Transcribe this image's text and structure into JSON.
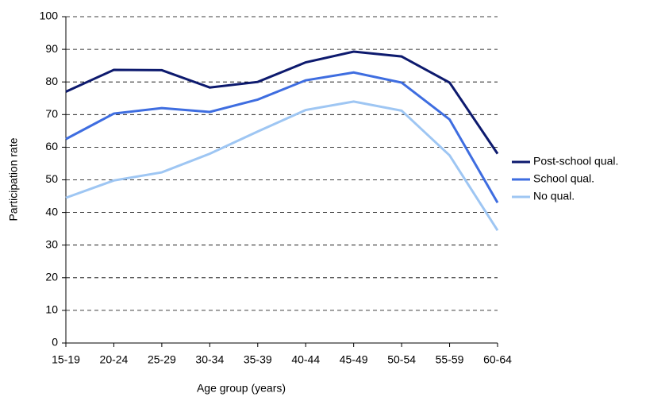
{
  "chart_data": {
    "type": "line",
    "x_label": "Age group (years)",
    "y_label": "Participation rate",
    "categories": [
      "15-19",
      "20-24",
      "25-29",
      "30-34",
      "35-39",
      "40-44",
      "45-49",
      "50-54",
      "55-59",
      "60-64"
    ],
    "series": [
      {
        "name": "Post-school qual.",
        "color": "#0d1a6e",
        "values": [
          77,
          83.7,
          83.6,
          78.3,
          80,
          86,
          89.3,
          87.8,
          79.8,
          58
        ]
      },
      {
        "name": "School qual.",
        "color": "#3e6de0",
        "values": [
          62.5,
          70.3,
          72,
          70.8,
          74.6,
          80.5,
          82.9,
          79.8,
          68.5,
          43
        ]
      },
      {
        "name": "No qual.",
        "color": "#9ec6f3",
        "values": [
          44.5,
          49.8,
          52.3,
          58,
          64.8,
          71.4,
          74,
          71.2,
          57.5,
          34.5
        ]
      }
    ],
    "ylim": [
      0,
      100
    ],
    "yticks": [
      0,
      10,
      20,
      30,
      40,
      50,
      60,
      70,
      80,
      90,
      100
    ],
    "grid": true,
    "legend": "right"
  }
}
